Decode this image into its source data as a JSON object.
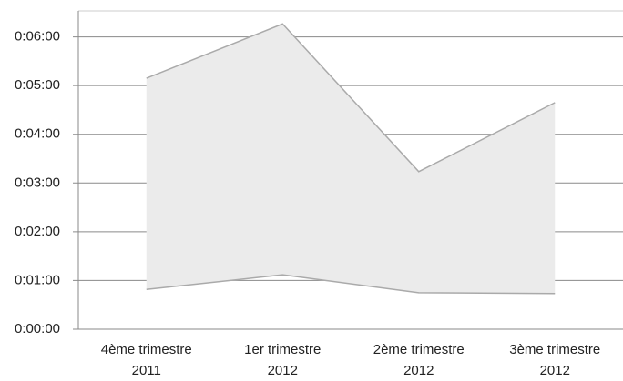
{
  "chart_data": {
    "type": "range-area",
    "categories": [
      [
        "4ème trimestre",
        "2011"
      ],
      [
        "1er trimestre",
        "2012"
      ],
      [
        "2ème trimestre",
        "2012"
      ],
      [
        "3ème trimestre",
        "2012"
      ]
    ],
    "series": [
      {
        "color": "#aaaaaa",
        "values": [
          49,
          67,
          45,
          44
        ]
      },
      {
        "color": "#aaaaaa",
        "values": [
          309,
          376,
          194,
          279
        ]
      }
    ],
    "fill": "#ebebeb",
    "ylim": [
      0,
      392
    ],
    "yticks": [
      {
        "value": 0,
        "label": "0:00:00"
      },
      {
        "value": 60,
        "label": "0:01:00"
      },
      {
        "value": 120,
        "label": "0:02:00"
      },
      {
        "value": 180,
        "label": "0:03:00"
      },
      {
        "value": 240,
        "label": "0:04:00"
      },
      {
        "value": 300,
        "label": "0:05:00"
      },
      {
        "value": 360,
        "label": "0:06:00"
      }
    ],
    "grid": true
  }
}
